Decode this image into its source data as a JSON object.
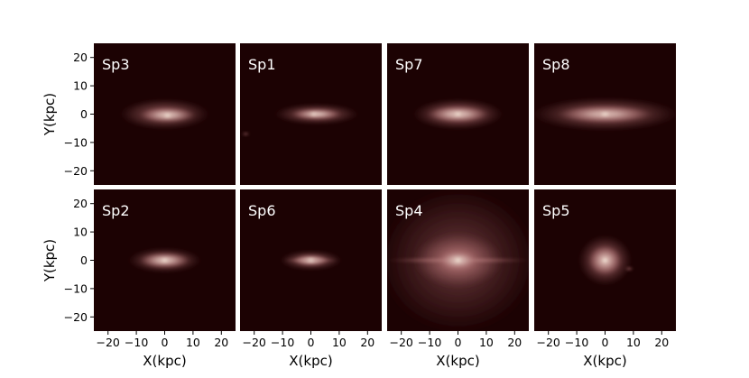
{
  "chart_data": {
    "type": "heatmap",
    "xlabel": "X(kpc)",
    "ylabel": "Y(kpc)",
    "xlim": [
      -25,
      25
    ],
    "ylim": [
      -25,
      25
    ],
    "xticks": [
      -20,
      -10,
      0,
      10,
      20
    ],
    "yticks": [
      -20,
      -10,
      0,
      10,
      20
    ],
    "colormap": {
      "background": "#1c0203",
      "mid": "#a8686a",
      "peak": "#fff7e8"
    },
    "panels": [
      {
        "label": "Sp3",
        "row": 0,
        "col": 0,
        "components": [
          {
            "cx": 0,
            "cy": 0,
            "rx": 16,
            "ry": 5.5,
            "peak": 0.45
          },
          {
            "cx": 1,
            "cy": -0.3,
            "rx": 10,
            "ry": 2.8,
            "peak": 0.9
          },
          {
            "cx": 1,
            "cy": -0.5,
            "rx": 2.5,
            "ry": 1.0,
            "peak": 1.0
          }
        ]
      },
      {
        "label": "Sp1",
        "row": 0,
        "col": 1,
        "components": [
          {
            "cx": 2,
            "cy": 0,
            "rx": 15,
            "ry": 3.8,
            "peak": 0.45
          },
          {
            "cx": 2,
            "cy": 0,
            "rx": 9,
            "ry": 2.0,
            "peak": 0.9
          },
          {
            "cx": 1,
            "cy": 0,
            "rx": 2.0,
            "ry": 0.8,
            "peak": 1.0
          },
          {
            "cx": -23,
            "cy": -7,
            "rx": 1.3,
            "ry": 0.5,
            "peak": 0.6
          }
        ]
      },
      {
        "label": "Sp7",
        "row": 0,
        "col": 2,
        "components": [
          {
            "cx": 0,
            "cy": 0,
            "rx": 16,
            "ry": 5.5,
            "peak": 0.5
          },
          {
            "cx": 0,
            "cy": 0,
            "rx": 11,
            "ry": 3.0,
            "peak": 0.9
          },
          {
            "cx": 0,
            "cy": 0,
            "rx": 2.5,
            "ry": 1.0,
            "peak": 1.0
          }
        ]
      },
      {
        "label": "Sp8",
        "row": 0,
        "col": 3,
        "components": [
          {
            "cx": 0,
            "cy": 0,
            "rx": 26,
            "ry": 6,
            "peak": 0.45
          },
          {
            "cx": 0,
            "cy": 0,
            "rx": 17,
            "ry": 3.2,
            "peak": 0.85
          },
          {
            "cx": 0,
            "cy": 0,
            "rx": 3.0,
            "ry": 1.1,
            "peak": 1.0
          }
        ]
      },
      {
        "label": "Sp2",
        "row": 1,
        "col": 0,
        "components": [
          {
            "cx": 0,
            "cy": 0,
            "rx": 13,
            "ry": 4.5,
            "peak": 0.45
          },
          {
            "cx": 0,
            "cy": 0,
            "rx": 9,
            "ry": 2.8,
            "peak": 0.9
          },
          {
            "cx": 0,
            "cy": 0,
            "rx": 2.5,
            "ry": 1.0,
            "peak": 1.0
          }
        ]
      },
      {
        "label": "Sp6",
        "row": 1,
        "col": 1,
        "components": [
          {
            "cx": 0,
            "cy": 0,
            "rx": 11,
            "ry": 3.6,
            "peak": 0.45
          },
          {
            "cx": 0,
            "cy": 0,
            "rx": 6.5,
            "ry": 2.0,
            "peak": 0.9
          },
          {
            "cx": 0,
            "cy": 0,
            "rx": 10,
            "ry": 0.6,
            "peak": 0.8
          },
          {
            "cx": 0,
            "cy": 0,
            "rx": 2.0,
            "ry": 0.8,
            "peak": 1.0
          }
        ]
      },
      {
        "label": "Sp4",
        "row": 1,
        "col": 2,
        "components": [
          {
            "cx": 0,
            "cy": 0,
            "rx": 28,
            "ry": 26,
            "peak": 0.28
          },
          {
            "cx": 0,
            "cy": 0,
            "rx": 16,
            "ry": 10,
            "peak": 0.6
          },
          {
            "cx": 0,
            "cy": 0,
            "rx": 26,
            "ry": 1.0,
            "peak": 0.65
          },
          {
            "cx": 0,
            "cy": 0,
            "rx": 7,
            "ry": 3.5,
            "peak": 0.9
          },
          {
            "cx": 0,
            "cy": 0,
            "rx": 2.5,
            "ry": 1.2,
            "peak": 1.0
          }
        ]
      },
      {
        "label": "Sp5",
        "row": 1,
        "col": 3,
        "components": [
          {
            "cx": 0,
            "cy": 0,
            "rx": 9.5,
            "ry": 9,
            "peak": 0.5
          },
          {
            "cx": 0,
            "cy": 0,
            "rx": 6,
            "ry": 5.5,
            "peak": 0.85
          },
          {
            "cx": 0,
            "cy": 0,
            "rx": 2.0,
            "ry": 1.8,
            "peak": 1.0
          },
          {
            "cx": 8.5,
            "cy": -3,
            "rx": 1.5,
            "ry": 0.6,
            "peak": 0.55
          }
        ]
      }
    ]
  }
}
